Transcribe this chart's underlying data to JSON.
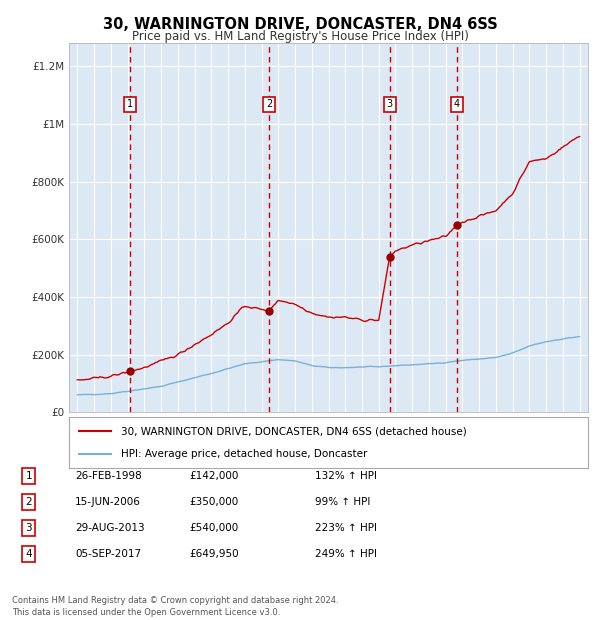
{
  "title": "30, WARNINGTON DRIVE, DONCASTER, DN4 6SS",
  "subtitle": "Price paid vs. HM Land Registry's House Price Index (HPI)",
  "title_fontsize": 10.5,
  "subtitle_fontsize": 8.5,
  "background_color": "#ffffff",
  "plot_bg_color": "#dce9f5",
  "grid_color": "#ffffff",
  "ylabel_color": "#333333",
  "xlabel_color": "#333333",
  "hpi_line_color": "#7ab0d4",
  "price_line_color": "#cc0000",
  "dot_color": "#990000",
  "dashed_line_color": "#cc0000",
  "purchases": [
    {
      "num": 1,
      "date": "26-FEB-1998",
      "price": 142000,
      "hpi_pct": "132%",
      "x_year": 1998.15
    },
    {
      "num": 2,
      "date": "15-JUN-2006",
      "price": 350000,
      "hpi_pct": "99%",
      "x_year": 2006.45
    },
    {
      "num": 3,
      "date": "29-AUG-2013",
      "price": 540000,
      "hpi_pct": "223%",
      "x_year": 2013.66
    },
    {
      "num": 4,
      "date": "05-SEP-2017",
      "price": 649950,
      "hpi_pct": "249%",
      "x_year": 2017.68
    }
  ],
  "ylim": [
    0,
    1280000
  ],
  "xlim_start": 1994.5,
  "xlim_end": 2025.5,
  "yticks": [
    0,
    200000,
    400000,
    600000,
    800000,
    1000000,
    1200000
  ],
  "ytick_labels": [
    "£0",
    "£200K",
    "£400K",
    "£600K",
    "£800K",
    "£1M",
    "£1.2M"
  ],
  "xticks": [
    1995,
    1996,
    1997,
    1998,
    1999,
    2000,
    2001,
    2002,
    2003,
    2004,
    2005,
    2006,
    2007,
    2008,
    2009,
    2010,
    2011,
    2012,
    2013,
    2014,
    2015,
    2016,
    2017,
    2018,
    2019,
    2020,
    2021,
    2022,
    2023,
    2024,
    2025
  ],
  "legend_label_red": "30, WARNINGTON DRIVE, DONCASTER, DN4 6SS (detached house)",
  "legend_label_blue": "HPI: Average price, detached house, Doncaster",
  "footer": "Contains HM Land Registry data © Crown copyright and database right 2024.\nThis data is licensed under the Open Government Licence v3.0.",
  "table_rows": [
    [
      "1",
      "26-FEB-1998",
      "£142,000",
      "132% ↑ HPI"
    ],
    [
      "2",
      "15-JUN-2006",
      "£350,000",
      "99% ↑ HPI"
    ],
    [
      "3",
      "29-AUG-2013",
      "£540,000",
      "223% ↑ HPI"
    ],
    [
      "4",
      "05-SEP-2017",
      "£649,950",
      "249% ↑ HPI"
    ]
  ]
}
